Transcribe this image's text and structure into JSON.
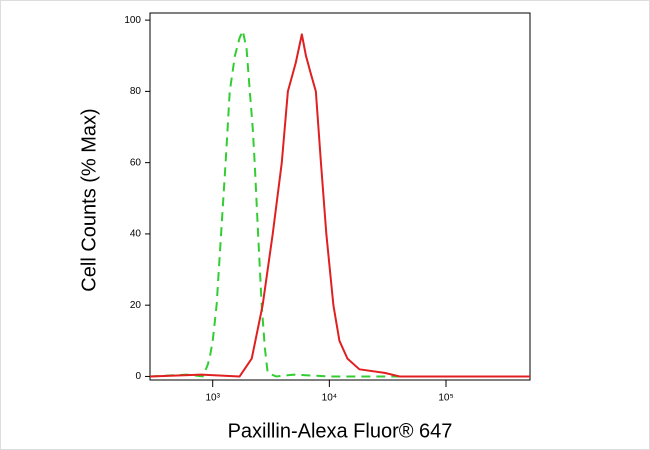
{
  "chart_data": {
    "type": "line",
    "x_label": "Paxillin-Alexa Fluor® 647",
    "y_label": "Cell Counts (% Max)",
    "x_scale": "log",
    "xlim": [
      290,
      525000
    ],
    "xticks": [
      {
        "value": 1000,
        "label": "10³"
      },
      {
        "value": 10000,
        "label": "10⁴"
      },
      {
        "value": 100000,
        "label": "10⁵"
      }
    ],
    "ylim": [
      -1,
      102
    ],
    "yticks": [
      0,
      20,
      40,
      60,
      80,
      100
    ],
    "grid": false,
    "series": [
      {
        "color": "#33cc33",
        "dashed": true,
        "x": [
          290,
          600,
          820,
          900,
          940,
          1000,
          1080,
          1180,
          1290,
          1400,
          1550,
          1700,
          1810,
          1950,
          2080,
          2200,
          2290,
          2450,
          2630,
          2800,
          2960,
          3500,
          5000,
          10000,
          100000,
          525000
        ],
        "values": [
          0,
          0.5,
          0,
          3,
          5,
          10,
          20,
          40,
          60,
          80,
          90,
          95,
          97,
          92,
          80,
          70,
          60,
          40,
          20,
          8,
          1,
          0,
          0.5,
          0,
          0,
          0
        ]
      },
      {
        "color": "#e02020",
        "dashed": false,
        "x": [
          290,
          800,
          1700,
          2160,
          2680,
          3270,
          3910,
          4410,
          5150,
          5810,
          6300,
          6930,
          7660,
          8470,
          9420,
          10830,
          12200,
          14300,
          18100,
          29800,
          40000,
          100000,
          525000
        ],
        "values": [
          0,
          0.5,
          0,
          5,
          20,
          40,
          60,
          80,
          88,
          96,
          90,
          85,
          80,
          60,
          40,
          20,
          10,
          5,
          2,
          1,
          0,
          0,
          0
        ]
      }
    ]
  }
}
